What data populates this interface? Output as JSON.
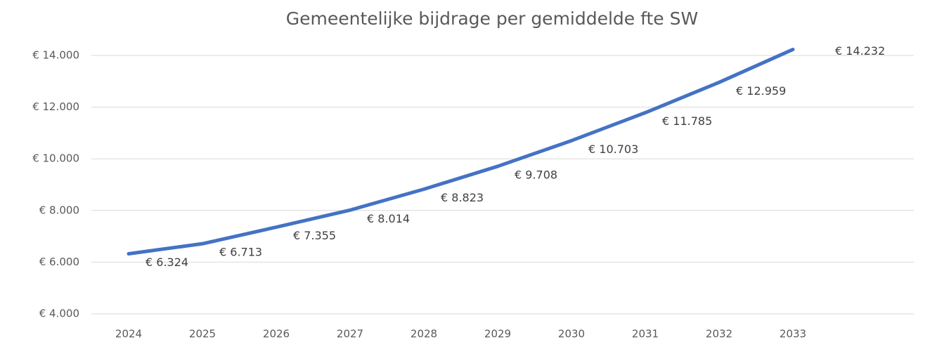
{
  "chart_data": {
    "type": "line",
    "title": "Gemeentelijke bijdrage per gemiddelde fte SW",
    "categories": [
      "2024",
      "2025",
      "2026",
      "2027",
      "2028",
      "2029",
      "2030",
      "2031",
      "2032",
      "2033"
    ],
    "series": [
      {
        "name": "Gemeentelijke bijdrage",
        "color": "#4472c4",
        "values": [
          6324,
          6713,
          7355,
          8014,
          8823,
          9708,
          10703,
          11785,
          12959,
          14232
        ],
        "value_labels": [
          "€ 6.324",
          "€ 6.713",
          "€ 7.355",
          "€ 8.014",
          "€ 8.823",
          "€ 9.708",
          "€ 10.703",
          "€ 11.785",
          "€ 12.959",
          "€ 14.232"
        ]
      }
    ],
    "ylim": [
      4000,
      14000
    ],
    "yticks": [
      {
        "value": 4000,
        "label": "€ 4.000"
      },
      {
        "value": 6000,
        "label": "€ 6.000"
      },
      {
        "value": 8000,
        "label": "€ 8.000"
      },
      {
        "value": 10000,
        "label": "€ 10.000"
      },
      {
        "value": 12000,
        "label": "€ 12.000"
      },
      {
        "value": 14000,
        "label": "€ 14.000"
      }
    ],
    "grid": true
  }
}
